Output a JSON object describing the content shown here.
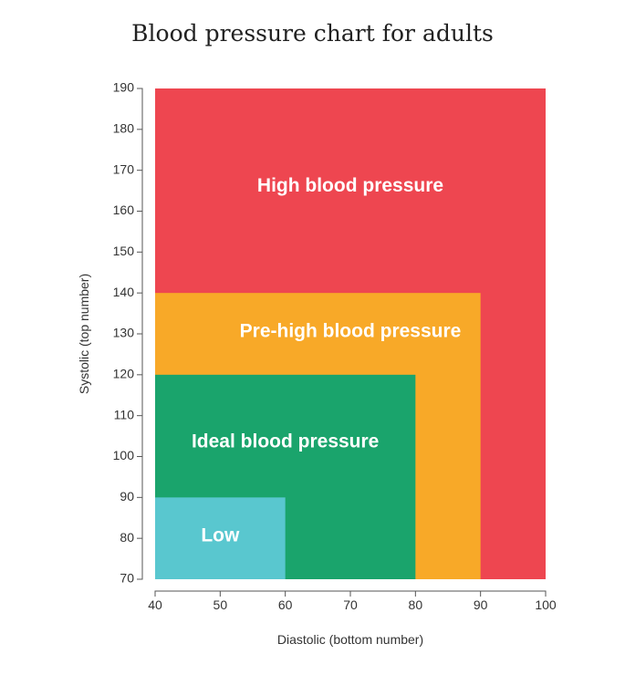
{
  "title": "Blood pressure chart for adults",
  "chart_data": {
    "type": "area",
    "title": "Blood pressure chart for adults",
    "xlabel": "Diastolic (bottom number)",
    "ylabel": "Systolic (top number)",
    "xlim": [
      40,
      100
    ],
    "ylim": [
      70,
      190
    ],
    "xticks": [
      40,
      50,
      60,
      70,
      80,
      90,
      100
    ],
    "yticks": [
      70,
      80,
      90,
      100,
      110,
      120,
      130,
      140,
      150,
      160,
      170,
      180,
      190
    ],
    "zones": [
      {
        "name": "High blood pressure",
        "x_max": 100,
        "y_max": 190,
        "color": "#ee4650"
      },
      {
        "name": "Pre-high blood pressure",
        "x_max": 90,
        "y_max": 140,
        "color": "#f8a928"
      },
      {
        "name": "Ideal blood pressure",
        "x_max": 80,
        "y_max": 120,
        "color": "#1aa46c"
      },
      {
        "name": "Low",
        "x_max": 60,
        "y_max": 90,
        "color": "#59c7cf"
      }
    ],
    "grid": false,
    "legend": "none"
  }
}
